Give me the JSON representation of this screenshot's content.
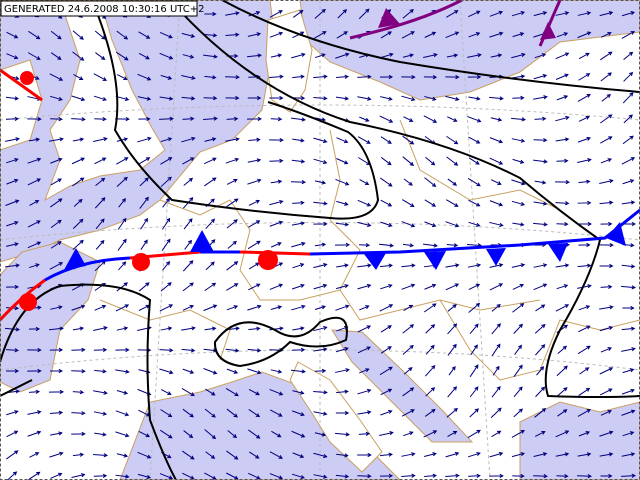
{
  "header": {
    "generated": "GENERATED 24.6.2008 10:30:16 UTC+2"
  }
}
